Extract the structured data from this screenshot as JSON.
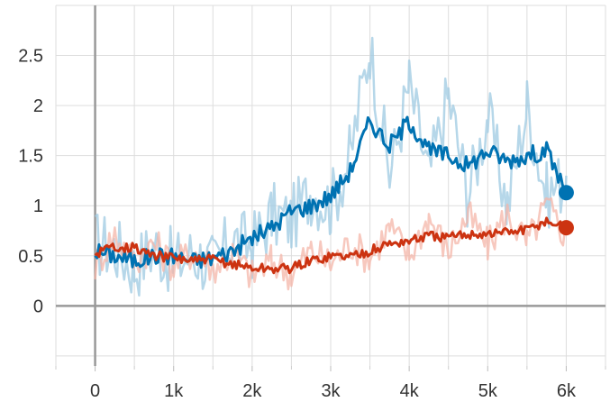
{
  "chart_data": {
    "type": "line",
    "title": "",
    "xlabel": "",
    "ylabel": "",
    "xlim": [
      -500,
      6500
    ],
    "ylim": [
      -0.6,
      3.0
    ],
    "x_ticks": [
      0,
      1000,
      2000,
      3000,
      4000,
      5000,
      6000
    ],
    "x_tick_labels": [
      "0",
      "1k",
      "2k",
      "3k",
      "4k",
      "5k",
      "6k"
    ],
    "y_ticks": [
      0,
      0.5,
      1,
      1.5,
      2,
      2.5
    ],
    "y_tick_labels": [
      "0",
      "0.5",
      "1",
      "1.5",
      "2",
      "2.5"
    ],
    "grid": true,
    "legend": "none",
    "colors": {
      "blue": "#0072b2",
      "blue_raw": "#9ecae1",
      "red": "#cc3311",
      "red_raw": "#f4b6a8"
    },
    "series": [
      {
        "color_key": "blue",
        "x": [
          0,
          250,
          500,
          750,
          1000,
          1250,
          1500,
          1750,
          2000,
          2250,
          2500,
          2750,
          3000,
          3250,
          3500,
          3750,
          4000,
          4250,
          4500,
          4750,
          5000,
          5250,
          5500,
          5750,
          6000
        ],
        "values": [
          0.55,
          0.5,
          0.45,
          0.5,
          0.5,
          0.45,
          0.48,
          0.55,
          0.68,
          0.78,
          0.95,
          1.0,
          1.1,
          1.35,
          1.85,
          1.6,
          1.85,
          1.55,
          1.5,
          1.4,
          1.55,
          1.45,
          1.5,
          1.55,
          1.13
        ],
        "raw_values": [
          0.62,
          0.58,
          0.38,
          0.6,
          0.42,
          0.52,
          0.4,
          0.65,
          0.6,
          0.9,
          0.85,
          1.15,
          1.0,
          1.5,
          2.6,
          1.3,
          2.2,
          1.3,
          2.1,
          1.1,
          1.9,
          1.0,
          2.0,
          1.1,
          1.3
        ]
      },
      {
        "color_key": "red",
        "x": [
          0,
          250,
          500,
          750,
          1000,
          1250,
          1500,
          1750,
          2000,
          2250,
          2500,
          2750,
          3000,
          3250,
          3500,
          3750,
          4000,
          4250,
          4500,
          4750,
          5000,
          5250,
          5500,
          5750,
          6000
        ],
        "values": [
          0.52,
          0.6,
          0.58,
          0.5,
          0.48,
          0.45,
          0.46,
          0.42,
          0.38,
          0.37,
          0.38,
          0.45,
          0.5,
          0.5,
          0.55,
          0.62,
          0.65,
          0.7,
          0.68,
          0.72,
          0.72,
          0.74,
          0.76,
          0.85,
          0.78
        ],
        "raw_values": [
          0.4,
          0.72,
          0.45,
          0.62,
          0.4,
          0.55,
          0.38,
          0.52,
          0.3,
          0.45,
          0.32,
          0.55,
          0.42,
          0.62,
          0.48,
          0.78,
          0.5,
          0.88,
          0.55,
          0.9,
          0.6,
          0.92,
          0.62,
          1.0,
          0.7
        ]
      }
    ]
  }
}
